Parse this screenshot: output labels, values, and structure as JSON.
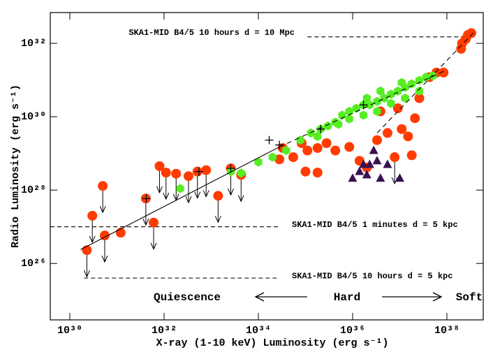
{
  "chart_data": {
    "type": "scatter",
    "xlabel": "X-ray (1-10 keV) Luminosity (erg s⁻¹)",
    "ylabel": "Radio Luminosity (erg s⁻¹)",
    "log_x": true,
    "log_y": true,
    "xlim": [
      3.85e+29,
      5.9e+38
    ],
    "ylim": [
      2.9e+24,
      6.9e+32
    ],
    "xticks": [
      {
        "value": 1e+30,
        "label": "10³⁰"
      },
      {
        "value": 1e+32,
        "label": "10³²"
      },
      {
        "value": 1e+34,
        "label": "10³⁴"
      },
      {
        "value": 1e+36,
        "label": "10³⁶"
      },
      {
        "value": 1e+38,
        "label": "10³⁸"
      }
    ],
    "yticks": [
      {
        "value": 1e+26,
        "label": "10²⁶"
      },
      {
        "value": 1e+28,
        "label": "10²⁸"
      },
      {
        "value": 1e+30,
        "label": "10³⁰"
      },
      {
        "value": 1e+32,
        "label": "10³²"
      }
    ],
    "series": [
      {
        "color": "#000000",
        "marker": "arrow",
        "x": [
          2.3e+30,
          5.5e+30,
          5e+30,
          3e+30,
          8e+31,
          1.1e+32,
          1.8e+32,
          6e+31,
          4.1e+31,
          3.3e+32,
          5.1e+32,
          7.8e+32,
          1.4e+33,
          2.6e+33,
          4.3e+33,
          7.8e+36
        ],
        "y": [
          2.3e+26,
          5.8e+26,
          1.3e+28,
          2e+27,
          4.5e+28,
          3e+28,
          2.8e+28,
          1.3e+27,
          5.9e+27,
          2.4e+28,
          3.2e+28,
          3.5e+28,
          7e+27,
          3.9e+28,
          2.6e+28,
          7.9e+28
        ]
      },
      {
        "color": "#ff3c00",
        "marker": "circle",
        "x": [
          2.3e+30,
          5.5e+30,
          1.2e+31,
          3e+30,
          5e+30,
          6e+31,
          8e+31,
          1.1e+32,
          1.8e+32,
          3.3e+32,
          5.1e+32,
          7.8e+32,
          4.1e+31,
          1.4e+33,
          2.6e+33,
          4.3e+33,
          3.3e+34,
          5.5e+34,
          8.3e+34,
          1.1e+35,
          1.8e+35,
          2.8e+35,
          4.3e+35,
          1e+35,
          1.8e+35,
          2.8e+34,
          8.5e+35,
          1.4e+36,
          2e+36,
          3.3e+36,
          5.5e+36,
          7.8e+36,
          1.1e+37,
          1.5e+37,
          1.8e+37,
          9.1e+36,
          3.9e+36,
          2.1e+37,
          2.6e+37,
          4.3e+37,
          6e+37,
          8.5e+37,
          2.1e+38,
          2.5e+38,
          2.8e+38,
          2e+38,
          3.3e+38
        ],
        "y": [
          2.3e+26,
          5.8e+26,
          6.9e+26,
          2e+27,
          1.3e+28,
          1.3e+27,
          4.5e+28,
          3e+28,
          2.8e+28,
          2.4e+28,
          3.2e+28,
          3.5e+28,
          5.9e+27,
          7e+27,
          3.9e+28,
          2.6e+28,
          1.4e+29,
          7.9e+28,
          1.9e+29,
          1.2e+29,
          1.4e+29,
          1.9e+29,
          1.2e+29,
          3.2e+28,
          3e+28,
          6.9e+28,
          1.5e+29,
          6.3e+28,
          4.1e+28,
          2.3e+29,
          3.6e+29,
          7.9e+28,
          4.6e+29,
          2.9e+29,
          8.9e+28,
          1.7e+30,
          1.4e+30,
          9.1e+29,
          3.2e+30,
          1.2e+31,
          1.6e+31,
          1.6e+31,
          1e+32,
          1.3e+32,
          1.7e+32,
          7.1e+31,
          1.9e+32
        ]
      },
      {
        "color": "#55ee22",
        "marker": "hexagon",
        "x": [
          2.2e+32,
          2.6e+33,
          4.3e+33,
          1e+34,
          2e+34,
          3.9e+34,
          7.8e+34,
          1.3e+35,
          2.1e+35,
          3e+35,
          4.3e+35,
          6e+35,
          8.5e+35,
          1.2e+36,
          1.7e+36,
          2.3e+36,
          3.3e+36,
          4.7e+36,
          6.5e+36,
          9.1e+36,
          1.3e+37,
          1.8e+37,
          2.6e+37,
          3.6e+37,
          5e+37,
          8.5e+35,
          1.7e+36,
          3.3e+36,
          6.5e+36,
          1.3e+37,
          2.6e+37,
          5e+35,
          1.8e+35,
          2e+36,
          1.1e+37,
          3.9e+36
        ],
        "y": [
          1.1e+28,
          3.2e+28,
          2.9e+28,
          5.8e+28,
          7.9e+28,
          1.2e+29,
          2.3e+29,
          3.6e+29,
          4.6e+29,
          5.6e+29,
          7.1e+29,
          1.1e+30,
          1.4e+30,
          1.7e+30,
          2.1e+30,
          2.1e+30,
          2.6e+30,
          3.2e+30,
          4.1e+30,
          5e+30,
          6.3e+30,
          7.9e+30,
          9.8e+30,
          1.2e+31,
          1.3e+31,
          8.7e+29,
          1.1e+30,
          1.4e+30,
          2.3e+30,
          3.2e+30,
          5e+30,
          6.2e+29,
          2.9e+29,
          3.2e+30,
          8.5e+30,
          5e+30
        ]
      },
      {
        "color": "#3a1050",
        "marker": "triangle",
        "x": [
          1e+36,
          1.4e+36,
          2e+36,
          2.3e+36,
          3.3e+36,
          2.8e+36,
          1.7e+36,
          3.9e+36,
          5.5e+36,
          1e+37
        ],
        "y": [
          2.1e+28,
          3.2e+28,
          2.6e+28,
          5e+28,
          6.3e+28,
          1.2e+29,
          5e+28,
          2.1e+28,
          5e+28,
          2.1e+28
        ]
      },
      {
        "color": "#000000",
        "marker": "plus",
        "x": [
          1.7e+34,
          2.8e+34,
          2.1e+35,
          1.7e+36,
          4.2e+31,
          2.6e+33,
          5.5e+32
        ],
        "y": [
          2.3e+29,
          1.7e+29,
          4.6e+29,
          2.1e+30,
          5.9e+27,
          3.9e+28,
          3.2e+28
        ]
      }
    ],
    "lines": [
      {
        "style": "solid",
        "x": [
          1.7e+30,
          2.8e+34
        ],
        "y": [
          2.4e+26,
          1.5e+29
        ]
      },
      {
        "style": "dashed",
        "x": [
          2.8e+34,
          1e+38
        ],
        "y": [
          1.5e+29,
          1.9e+31
        ]
      },
      {
        "style": "dashed",
        "x": [
          3.3e+36,
          3.9e+38
        ],
        "y": [
          3.6e+29,
          2.1e+32
        ]
      }
    ],
    "hlines": [
      {
        "label": "SKA1-MID B4/5 10 hours d = 10 Mpc",
        "y": 1.5e+32,
        "x": [
          1.1e+35,
          3.9e+38
        ]
      },
      {
        "label": "SKA1-MID B4/5 1 minutes d = 5 kpc",
        "y": 1e+27,
        "x": [
          3.85e+29,
          2.8e+34
        ]
      },
      {
        "label": "SKA1-MID B4/5 10 hours d = 5 kpc",
        "y": 4e+25,
        "x": [
          2e+30,
          2.8e+34
        ]
      }
    ],
    "annotations": [
      "Quiescence",
      "Hard",
      "Soft"
    ]
  }
}
